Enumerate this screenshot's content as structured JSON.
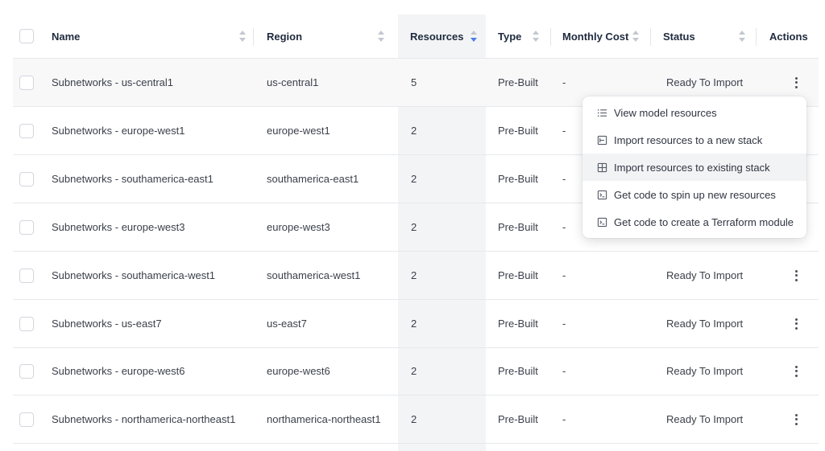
{
  "table": {
    "columns": [
      {
        "key": "name",
        "label": "Name"
      },
      {
        "key": "region",
        "label": "Region"
      },
      {
        "key": "resources",
        "label": "Resources",
        "sorted": "descending"
      },
      {
        "key": "type",
        "label": "Type"
      },
      {
        "key": "monthly_cost",
        "label": "Monthly Cost"
      },
      {
        "key": "status",
        "label": "Status"
      },
      {
        "key": "actions",
        "label": "Actions"
      }
    ],
    "rows": [
      {
        "name": "Subnetworks - us-central1",
        "region": "us-central1",
        "resources": "5",
        "type": "Pre-Built",
        "monthly_cost": "-",
        "status": "Ready To Import"
      },
      {
        "name": "Subnetworks - europe-west1",
        "region": "europe-west1",
        "resources": "2",
        "type": "Pre-Built",
        "monthly_cost": "-",
        "status": ""
      },
      {
        "name": "Subnetworks - southamerica-east1",
        "region": "southamerica-east1",
        "resources": "2",
        "type": "Pre-Built",
        "monthly_cost": "-",
        "status": ""
      },
      {
        "name": "Subnetworks - europe-west3",
        "region": "europe-west3",
        "resources": "2",
        "type": "Pre-Built",
        "monthly_cost": "-",
        "status": ""
      },
      {
        "name": "Subnetworks - southamerica-west1",
        "region": "southamerica-west1",
        "resources": "2",
        "type": "Pre-Built",
        "monthly_cost": "-",
        "status": "Ready To Import"
      },
      {
        "name": "Subnetworks - us-east7",
        "region": "us-east7",
        "resources": "2",
        "type": "Pre-Built",
        "monthly_cost": "-",
        "status": "Ready To Import"
      },
      {
        "name": "Subnetworks - europe-west6",
        "region": "europe-west6",
        "resources": "2",
        "type": "Pre-Built",
        "monthly_cost": "-",
        "status": "Ready To Import"
      },
      {
        "name": "Subnetworks - northamerica-northeast1",
        "region": "northamerica-northeast1",
        "resources": "2",
        "type": "Pre-Built",
        "monthly_cost": "-",
        "status": "Ready To Import"
      }
    ]
  },
  "actions_menu": {
    "items": [
      {
        "label": "View model resources",
        "icon": "list-icon"
      },
      {
        "label": "Import resources to a new stack",
        "icon": "import-new-icon"
      },
      {
        "label": "Import resources to existing stack",
        "icon": "import-existing-icon",
        "highlighted": true
      },
      {
        "label": "Get code to spin up new resources",
        "icon": "terminal-icon"
      },
      {
        "label": "Get code to create a Terraform module",
        "icon": "terminal-icon"
      }
    ]
  },
  "colors": {
    "sort_active": "#4a7de8",
    "sorted_column_bg": "#f3f4f6",
    "border": "#e6e8ec"
  }
}
